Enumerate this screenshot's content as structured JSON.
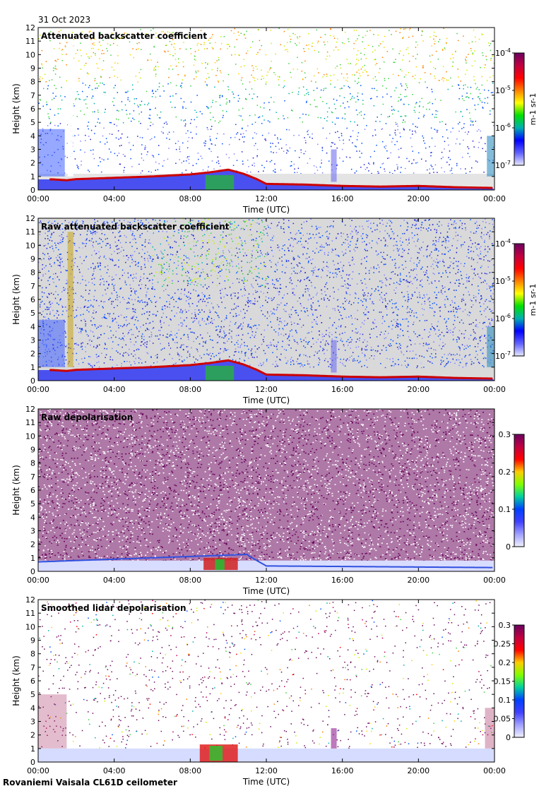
{
  "date": "31 Oct 2023",
  "footer": "Rovaniemi Vaisala CL61D ceilometer",
  "colors": {
    "cloud_base": "#cc0000",
    "clear_air_gray": "#d9d9d9",
    "depol_purple": "#6b0a5e"
  },
  "chart_data": [
    {
      "type": "heatmap",
      "title": "Attenuated backscatter coefficient",
      "xlabel": "Time (UTC)",
      "ylabel": "Height (km)",
      "xticks": [
        "00:00",
        "04:00",
        "08:00",
        "12:00",
        "16:00",
        "20:00",
        "00:00"
      ],
      "yticks": [
        "0",
        "1",
        "2",
        "3",
        "4",
        "5",
        "6",
        "7",
        "8",
        "9",
        "10",
        "11",
        "12"
      ],
      "xlim": [
        0,
        24
      ],
      "ylim": [
        0,
        12
      ],
      "colorbar": {
        "scale": "log",
        "ticks": [
          "10-4",
          "10-5",
          "10-6",
          "10-7"
        ],
        "unit": "m-1 sr-1"
      },
      "layer_top_km": [
        [
          0.8,
          0.78
        ],
        [
          1.5,
          0.72
        ],
        [
          2.0,
          0.8
        ],
        [
          4.0,
          0.9
        ],
        [
          6.0,
          1.0
        ],
        [
          8.0,
          1.15
        ],
        [
          9.0,
          1.3
        ],
        [
          10.0,
          1.5
        ],
        [
          10.8,
          1.2
        ],
        [
          11.5,
          0.8
        ],
        [
          12.0,
          0.45
        ],
        [
          14.0,
          0.4
        ],
        [
          16.0,
          0.3
        ],
        [
          18.0,
          0.25
        ],
        [
          20.0,
          0.3
        ],
        [
          22.0,
          0.2
        ],
        [
          24.0,
          0.15
        ]
      ]
    },
    {
      "type": "heatmap",
      "title": "Raw attenuated backscatter coefficient",
      "xlabel": "Time (UTC)",
      "ylabel": "Height (km)",
      "xticks": [
        "00:00",
        "04:00",
        "08:00",
        "12:00",
        "16:00",
        "20:00",
        "00:00"
      ],
      "yticks": [
        "0",
        "1",
        "2",
        "3",
        "4",
        "5",
        "6",
        "7",
        "8",
        "9",
        "10",
        "11",
        "12"
      ],
      "xlim": [
        0,
        24
      ],
      "ylim": [
        0,
        12
      ],
      "colorbar": {
        "scale": "log",
        "ticks": [
          "10-4",
          "10-5",
          "10-6",
          "10-7"
        ],
        "unit": "m-1 sr-1"
      },
      "layer_top_km": [
        [
          0.8,
          0.78
        ],
        [
          1.5,
          0.72
        ],
        [
          2.0,
          0.8
        ],
        [
          4.0,
          0.9
        ],
        [
          6.0,
          1.0
        ],
        [
          8.0,
          1.15
        ],
        [
          9.0,
          1.3
        ],
        [
          10.0,
          1.5
        ],
        [
          10.8,
          1.2
        ],
        [
          11.5,
          0.8
        ],
        [
          12.0,
          0.45
        ],
        [
          14.0,
          0.4
        ],
        [
          16.0,
          0.3
        ],
        [
          18.0,
          0.25
        ],
        [
          20.0,
          0.3
        ],
        [
          22.0,
          0.2
        ],
        [
          24.0,
          0.15
        ]
      ]
    },
    {
      "type": "heatmap",
      "title": "Raw depolarisation",
      "xlabel": "Time (UTC)",
      "ylabel": "Height (km)",
      "xticks": [
        "00:00",
        "04:00",
        "08:00",
        "12:00",
        "16:00",
        "20:00",
        "00:00"
      ],
      "yticks": [
        "0",
        "1",
        "2",
        "3",
        "4",
        "5",
        "6",
        "7",
        "8",
        "9",
        "10",
        "11",
        "12"
      ],
      "xlim": [
        0,
        24
      ],
      "ylim": [
        0,
        12
      ],
      "colorbar": {
        "scale": "linear",
        "ticks": [
          "0.3",
          "0.2",
          "0.1",
          "0"
        ]
      }
    },
    {
      "type": "heatmap",
      "title": "Smoothed lidar depolarisation",
      "xlabel": "Time (UTC)",
      "ylabel": "Height (km)",
      "xticks": [
        "00:00",
        "04:00",
        "08:00",
        "12:00",
        "16:00",
        "20:00",
        "00:00"
      ],
      "yticks": [
        "0",
        "1",
        "2",
        "3",
        "4",
        "5",
        "6",
        "7",
        "8",
        "9",
        "10",
        "11",
        "12"
      ],
      "xlim": [
        0,
        24
      ],
      "ylim": [
        0,
        12
      ],
      "colorbar": {
        "scale": "linear",
        "ticks": [
          "0.3",
          "0.25",
          "0.2",
          "0.15",
          "0.1",
          "0.05",
          "0"
        ]
      }
    }
  ]
}
